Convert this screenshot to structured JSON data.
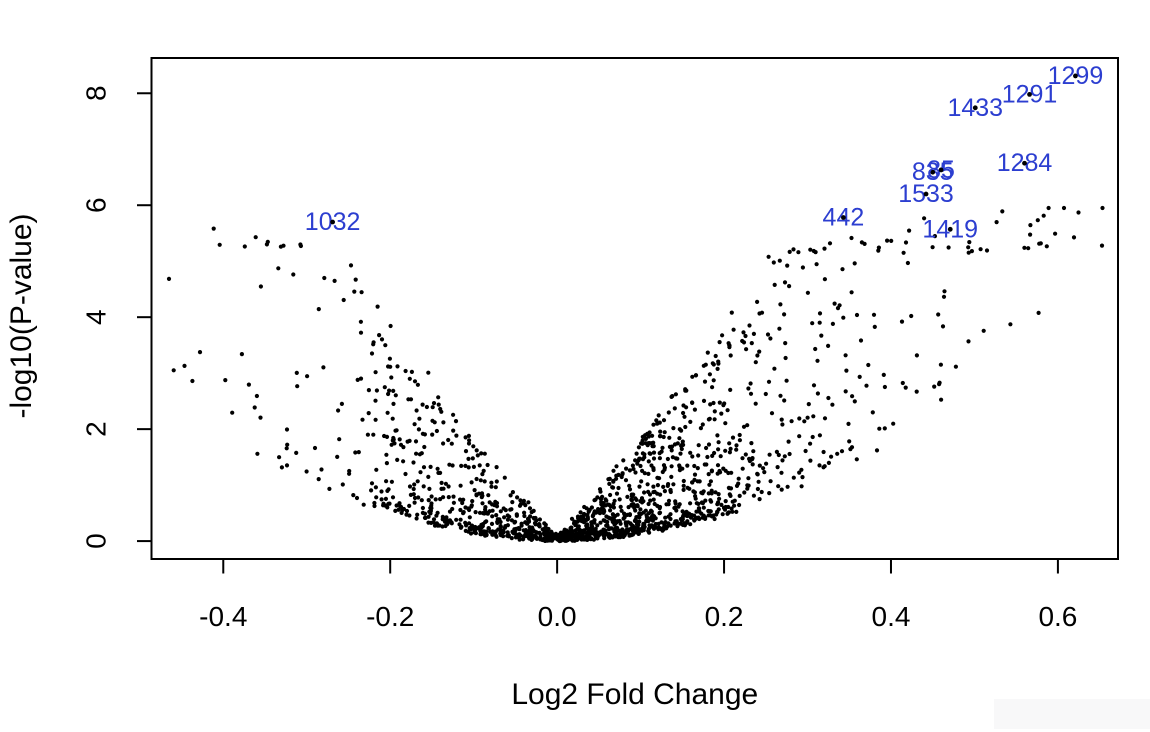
{
  "chart_data": {
    "type": "scatter",
    "variant": "volcano-plot",
    "title": "",
    "xlabel": "Log2 Fold Change",
    "ylabel": "-log10(P-value)",
    "xlim": [
      -0.486,
      0.672
    ],
    "ylim": [
      -0.32,
      8.63
    ],
    "x_ticks": [
      -0.4,
      -0.2,
      0.0,
      0.2,
      0.4,
      0.6
    ],
    "x_tick_labels": [
      "-0.4",
      "-0.2",
      "0.0",
      "0.2",
      "0.4",
      "0.6"
    ],
    "y_ticks": [
      0,
      2,
      4,
      6,
      8
    ],
    "y_tick_labels": [
      "0",
      "2",
      "4",
      "6",
      "8"
    ],
    "grid": false,
    "legend": "none",
    "point_color": "#000000",
    "label_color": "#2c3ed0",
    "axis_color": "#000000",
    "labeled_points": [
      {
        "label": "1032",
        "x": -0.269,
        "y": 5.7
      },
      {
        "label": "442",
        "x": 0.343,
        "y": 5.78
      },
      {
        "label": "1419",
        "x": 0.471,
        "y": 5.57
      },
      {
        "label": "1533",
        "x": 0.442,
        "y": 6.2
      },
      {
        "label": "835",
        "x": 0.45,
        "y": 6.59
      },
      {
        "label": "85",
        "x": 0.46,
        "y": 6.63
      },
      {
        "label": "1284",
        "x": 0.56,
        "y": 6.75
      },
      {
        "label": "1433",
        "x": 0.501,
        "y": 7.74
      },
      {
        "label": "1291",
        "x": 0.566,
        "y": 7.98
      },
      {
        "label": "1299",
        "x": 0.621,
        "y": 8.31
      }
    ],
    "background_cloud": {
      "description": "unlabeled gene points forming V-shaped volcano cloud, dense at origin, right arm denser and taller than left arm",
      "n": 1700,
      "seed": 7,
      "right_fraction": 0.62,
      "sd_right": 0.15,
      "sd_left": 0.16,
      "uniform_tail_prob": 0.08,
      "uniform_tail_min": 0.1,
      "uniform_tail_span": 0.56,
      "x_clamp": [
        -0.465,
        0.655
      ],
      "envelope_coef": 12.5,
      "spread_coef": 17,
      "spread_pow": 2.2,
      "base_noise": 0.12,
      "squash_threshold": 5.15,
      "squash_factor": 0.13,
      "y_cap": 5.95
    }
  }
}
